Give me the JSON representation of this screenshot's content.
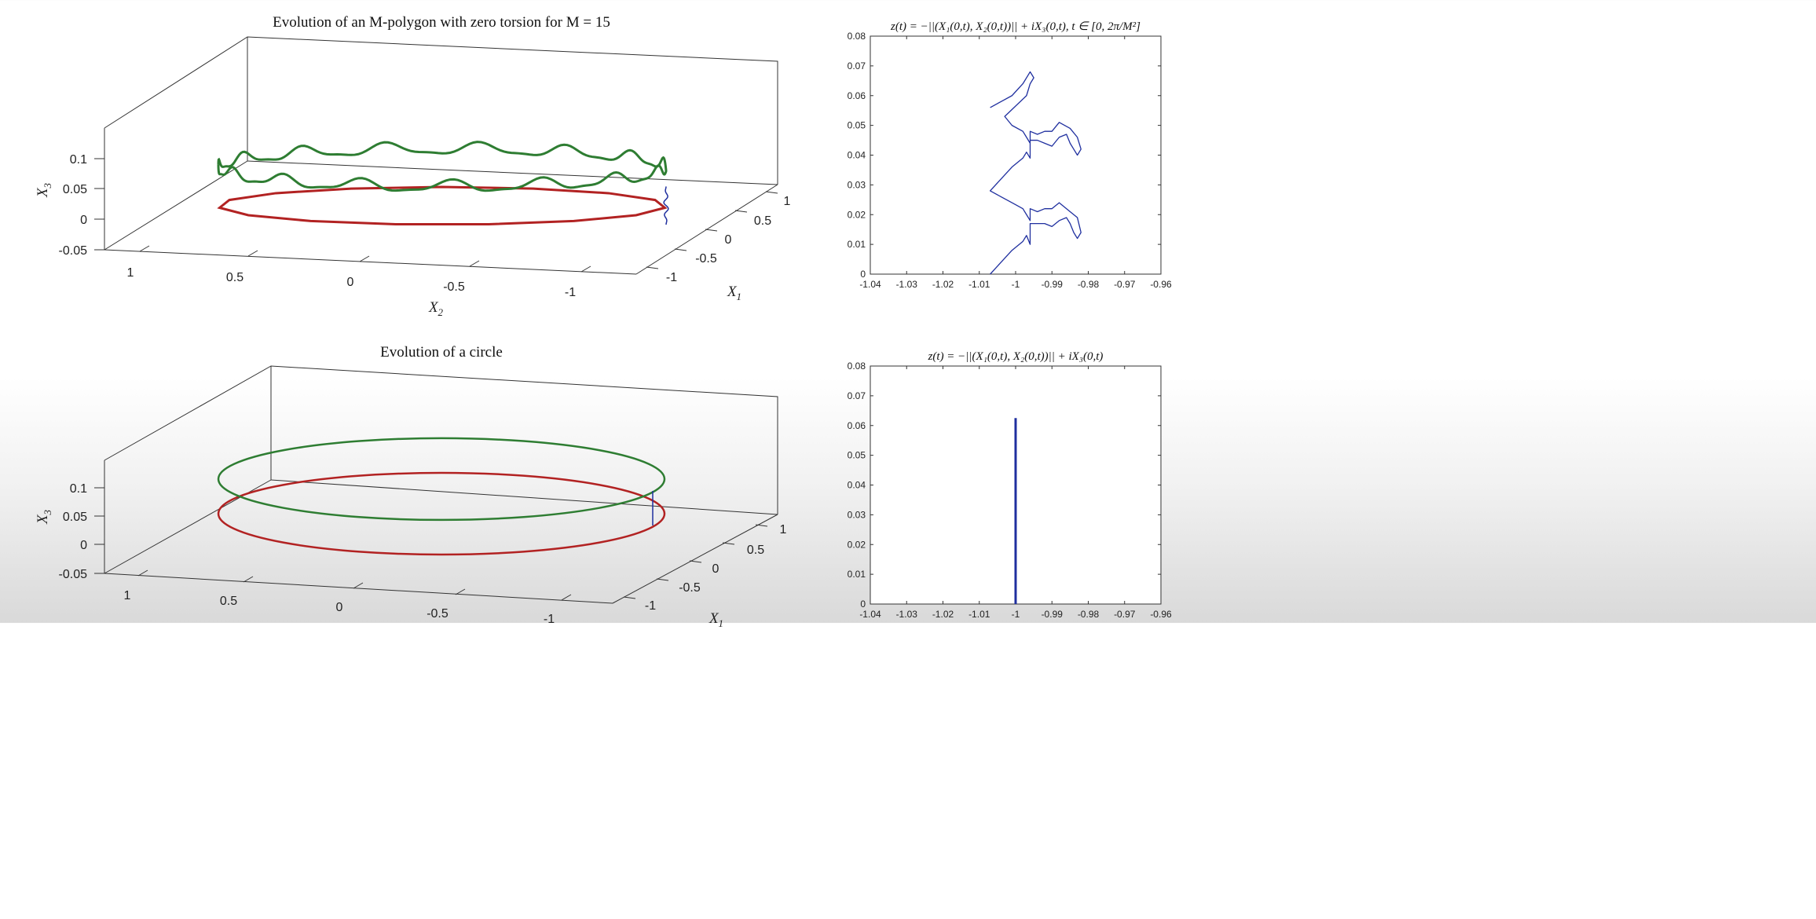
{
  "chart_data": [
    {
      "type": "line3d",
      "title": "Evolution of an M-polygon with zero torsion for M = 15",
      "xlabel": "X_1",
      "ylabel": "X_2",
      "zlabel": "X_3",
      "x1_ticks": [
        "-1",
        "-0.5",
        "0",
        "0.5",
        "1"
      ],
      "x2_ticks": [
        "1",
        "0.5",
        "0",
        "-0.5",
        "-1"
      ],
      "x3_ticks": [
        "-0.05",
        "0",
        "0.05",
        "0.1"
      ],
      "series": [
        {
          "color": "#b22222",
          "shape": "polygon",
          "sides": 15,
          "radius": 1,
          "z": 0
        },
        {
          "color": "#2e7d32",
          "shape": "wavy-curve",
          "radius": 1,
          "z": 0.063
        },
        {
          "color": "#1f2f9f",
          "shape": "trajectory",
          "x1": -1,
          "x2": 0,
          "z_range": [
            0,
            0.063
          ]
        }
      ]
    },
    {
      "type": "line",
      "title": "z(t) = −||(X₁(0,t), X₂(0,t))|| + iX₃(0,t), t ∈ [0, 2π/M²]",
      "xlim": [
        -1.04,
        -0.96
      ],
      "ylim": [
        0,
        0.08
      ],
      "xticks": [
        "-1.04",
        "-1.03",
        "-1.02",
        "-1.01",
        "-1",
        "-0.99",
        "-0.98",
        "-0.97",
        "-0.96"
      ],
      "yticks": [
        "0",
        "0.01",
        "0.02",
        "0.03",
        "0.04",
        "0.05",
        "0.06",
        "0.07",
        "0.08"
      ],
      "series": [
        {
          "color": "#1f2f9f",
          "x": [
            -1.007,
            -1.004,
            -1.001,
            -0.998,
            -0.997,
            -0.996,
            -0.996,
            -0.994,
            -0.992,
            -0.99,
            -0.988,
            -0.986,
            -0.985,
            -0.984,
            -0.983,
            -0.982,
            -0.983,
            -0.985,
            -0.988,
            -0.99,
            -0.992,
            -0.994,
            -0.996,
            -0.996,
            -0.997,
            -0.998,
            -1.001,
            -1.004,
            -1.007,
            -1.004,
            -1.001,
            -0.998,
            -0.997,
            -0.996,
            -0.996,
            -0.994,
            -0.992,
            -0.99,
            -0.988,
            -0.986,
            -0.985,
            -0.984,
            -0.983,
            -0.982,
            -0.983,
            -0.985,
            -0.988,
            -0.99,
            -0.992,
            -0.994,
            -0.996,
            -0.996,
            -0.997,
            -0.998,
            -1.001,
            -1.003,
            -0.997,
            -0.996,
            -0.995,
            -0.996,
            -0.998,
            -1.001,
            -1.004,
            -1.007
          ],
          "y": [
            0.0,
            0.004,
            0.008,
            0.011,
            0.013,
            0.01,
            0.017,
            0.017,
            0.017,
            0.016,
            0.018,
            0.019,
            0.017,
            0.014,
            0.012,
            0.014,
            0.019,
            0.021,
            0.024,
            0.022,
            0.022,
            0.021,
            0.022,
            0.018,
            0.02,
            0.022,
            0.024,
            0.026,
            0.028,
            0.032,
            0.036,
            0.039,
            0.041,
            0.039,
            0.045,
            0.045,
            0.044,
            0.043,
            0.046,
            0.047,
            0.044,
            0.042,
            0.04,
            0.042,
            0.046,
            0.049,
            0.051,
            0.048,
            0.048,
            0.047,
            0.048,
            0.044,
            0.046,
            0.048,
            0.05,
            0.053,
            0.06,
            0.064,
            0.066,
            0.068,
            0.064,
            0.06,
            0.058,
            0.056
          ]
        }
      ]
    },
    {
      "type": "line3d",
      "title": "Evolution of a circle",
      "xlabel": "X_1",
      "zlabel": "X_3",
      "x1_ticks": [
        "-1",
        "-0.5",
        "0",
        "0.5",
        "1"
      ],
      "x2_ticks": [
        "1",
        "0.5",
        "0",
        "-0.5",
        "-1"
      ],
      "x3_ticks": [
        "-0.05",
        "0",
        "0.05",
        "0.1"
      ],
      "series": [
        {
          "color": "#b22222",
          "shape": "circle",
          "radius": 1,
          "z": 0
        },
        {
          "color": "#2e7d32",
          "shape": "circle",
          "radius": 1,
          "z": 0.063
        },
        {
          "color": "#1f2f9f",
          "shape": "trajectory",
          "x1": -1,
          "x2": 0,
          "z_range": [
            0,
            0.063
          ]
        }
      ]
    },
    {
      "type": "line",
      "title": "z(t) = −||(X₁(0,t), X₂(0,t))|| + iX₃(0,t)",
      "xlim": [
        -1.04,
        -0.96
      ],
      "ylim": [
        0,
        0.08
      ],
      "xticks": [
        "-1.04",
        "-1.03",
        "-1.02",
        "-1.01",
        "-1",
        "-0.99",
        "-0.98",
        "-0.97",
        "-0.96"
      ],
      "yticks": [
        "0",
        "0.01",
        "0.02",
        "0.03",
        "0.04",
        "0.05",
        "0.06",
        "0.07",
        "0.08"
      ],
      "series": [
        {
          "color": "#1f2f9f",
          "x": [
            -1,
            -1
          ],
          "y": [
            0,
            0.0625
          ]
        }
      ]
    }
  ]
}
